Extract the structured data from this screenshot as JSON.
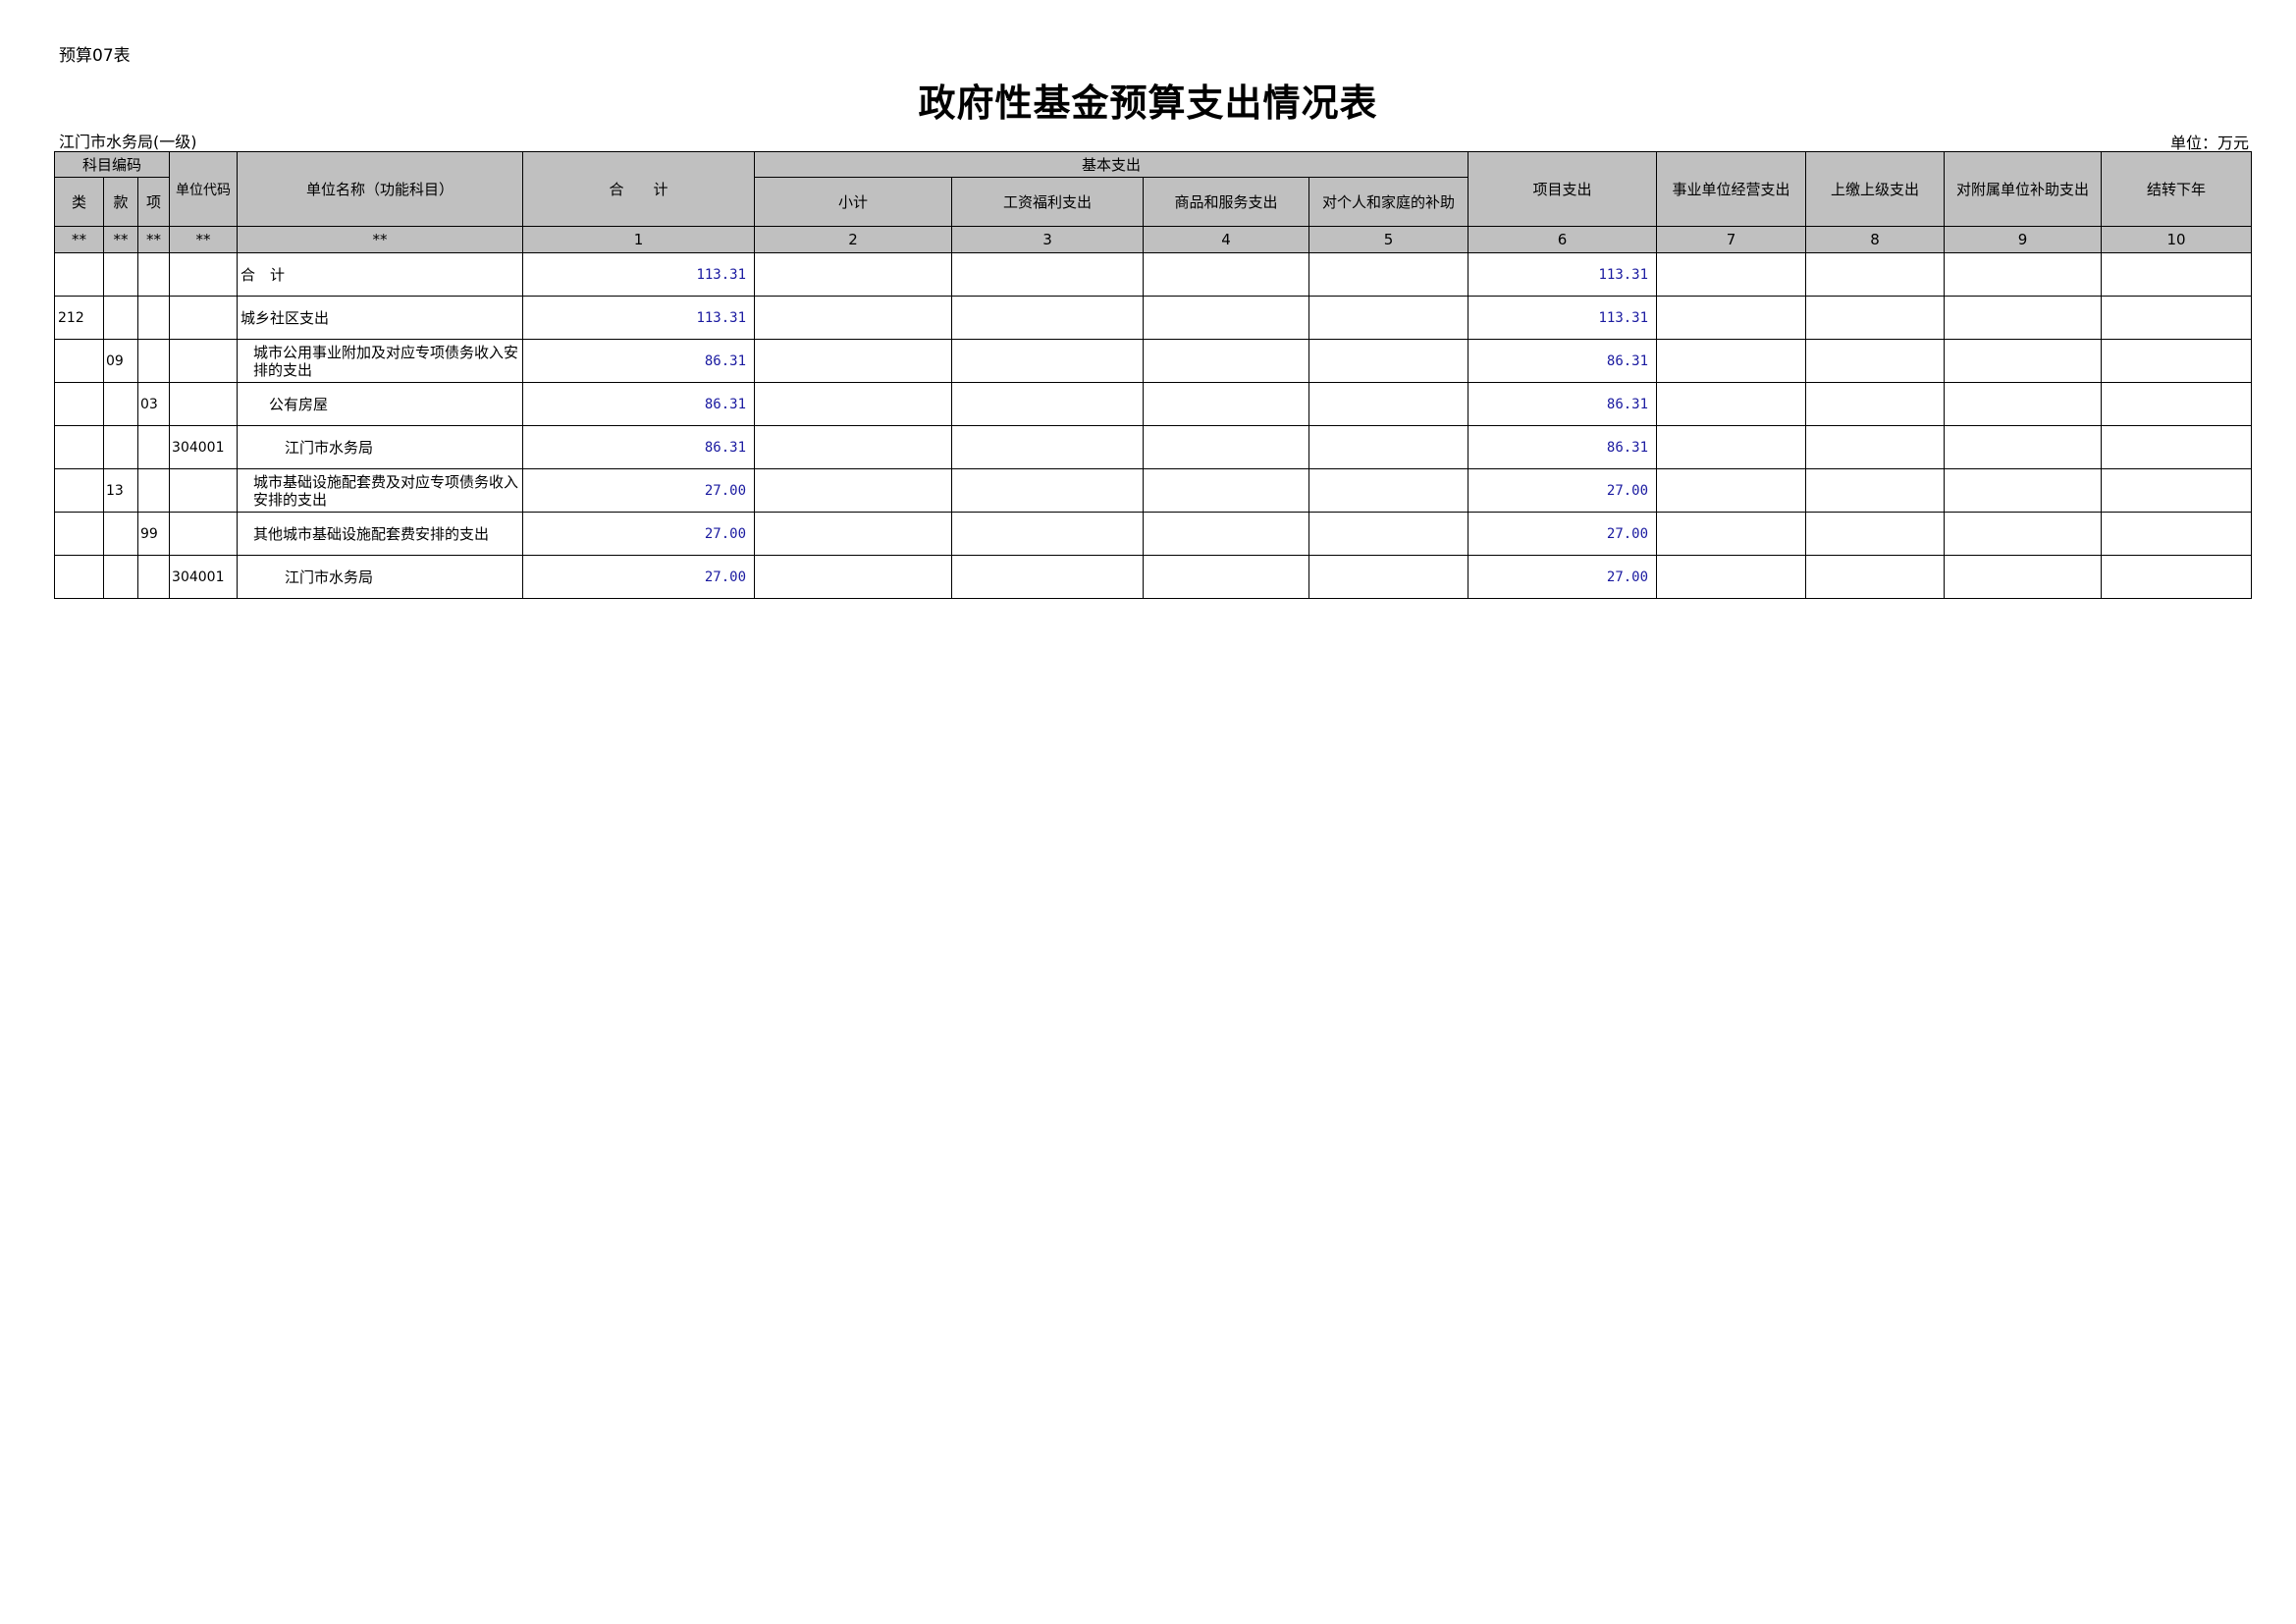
{
  "form_code": "预算07表",
  "title": "政府性基金预算支出情况表",
  "organization": "江门市水务局(一级)",
  "unit": "单位：万元",
  "headers": {
    "subject_code": "科目编码",
    "lei": "类",
    "kuan": "款",
    "xiang": "项",
    "unit_code": "单位代码",
    "unit_name": "单位名称（功能科目）",
    "total": "合　　计",
    "basic": "基本支出",
    "subtotal": "小计",
    "salary": "工资福利支出",
    "goods": "商品和服务支出",
    "personal": "对个人和家庭的补助",
    "project": "项目支出",
    "business": "事业单位经营支出",
    "upper": "上缴上级支出",
    "subsidy": "对附属单位补助支出",
    "carry": "结转下年"
  },
  "index_row": [
    "**",
    "**",
    "**",
    "**",
    "**",
    "1",
    "2",
    "3",
    "4",
    "5",
    "6",
    "7",
    "8",
    "9",
    "10"
  ],
  "rows": [
    {
      "lei": "",
      "kuan": "",
      "xiang": "",
      "code": "",
      "name": "合　计",
      "indent": 0,
      "total": "113.31",
      "project": "113.31"
    },
    {
      "lei": "212",
      "kuan": "",
      "xiang": "",
      "code": "",
      "name": "城乡社区支出",
      "indent": 0,
      "total": "113.31",
      "project": "113.31"
    },
    {
      "lei": "",
      "kuan": "09",
      "xiang": "",
      "code": "",
      "name": "城市公用事业附加及对应专项债务收入安排的支出",
      "indent": 1,
      "total": "86.31",
      "project": "86.31"
    },
    {
      "lei": "",
      "kuan": "",
      "xiang": "03",
      "code": "",
      "name": "公有房屋",
      "indent": 2,
      "total": "86.31",
      "project": "86.31"
    },
    {
      "lei": "",
      "kuan": "",
      "xiang": "",
      "code": "304001",
      "name": "江门市水务局",
      "indent": 3,
      "total": "86.31",
      "project": "86.31"
    },
    {
      "lei": "",
      "kuan": "13",
      "xiang": "",
      "code": "",
      "name": "城市基础设施配套费及对应专项债务收入安排的支出",
      "indent": 1,
      "total": "27.00",
      "project": "27.00"
    },
    {
      "lei": "",
      "kuan": "",
      "xiang": "99",
      "code": "",
      "name": "其他城市基础设施配套费安排的支出",
      "indent": 1,
      "total": "27.00",
      "project": "27.00"
    },
    {
      "lei": "",
      "kuan": "",
      "xiang": "",
      "code": "304001",
      "name": "江门市水务局",
      "indent": 3,
      "total": "27.00",
      "project": "27.00"
    }
  ]
}
